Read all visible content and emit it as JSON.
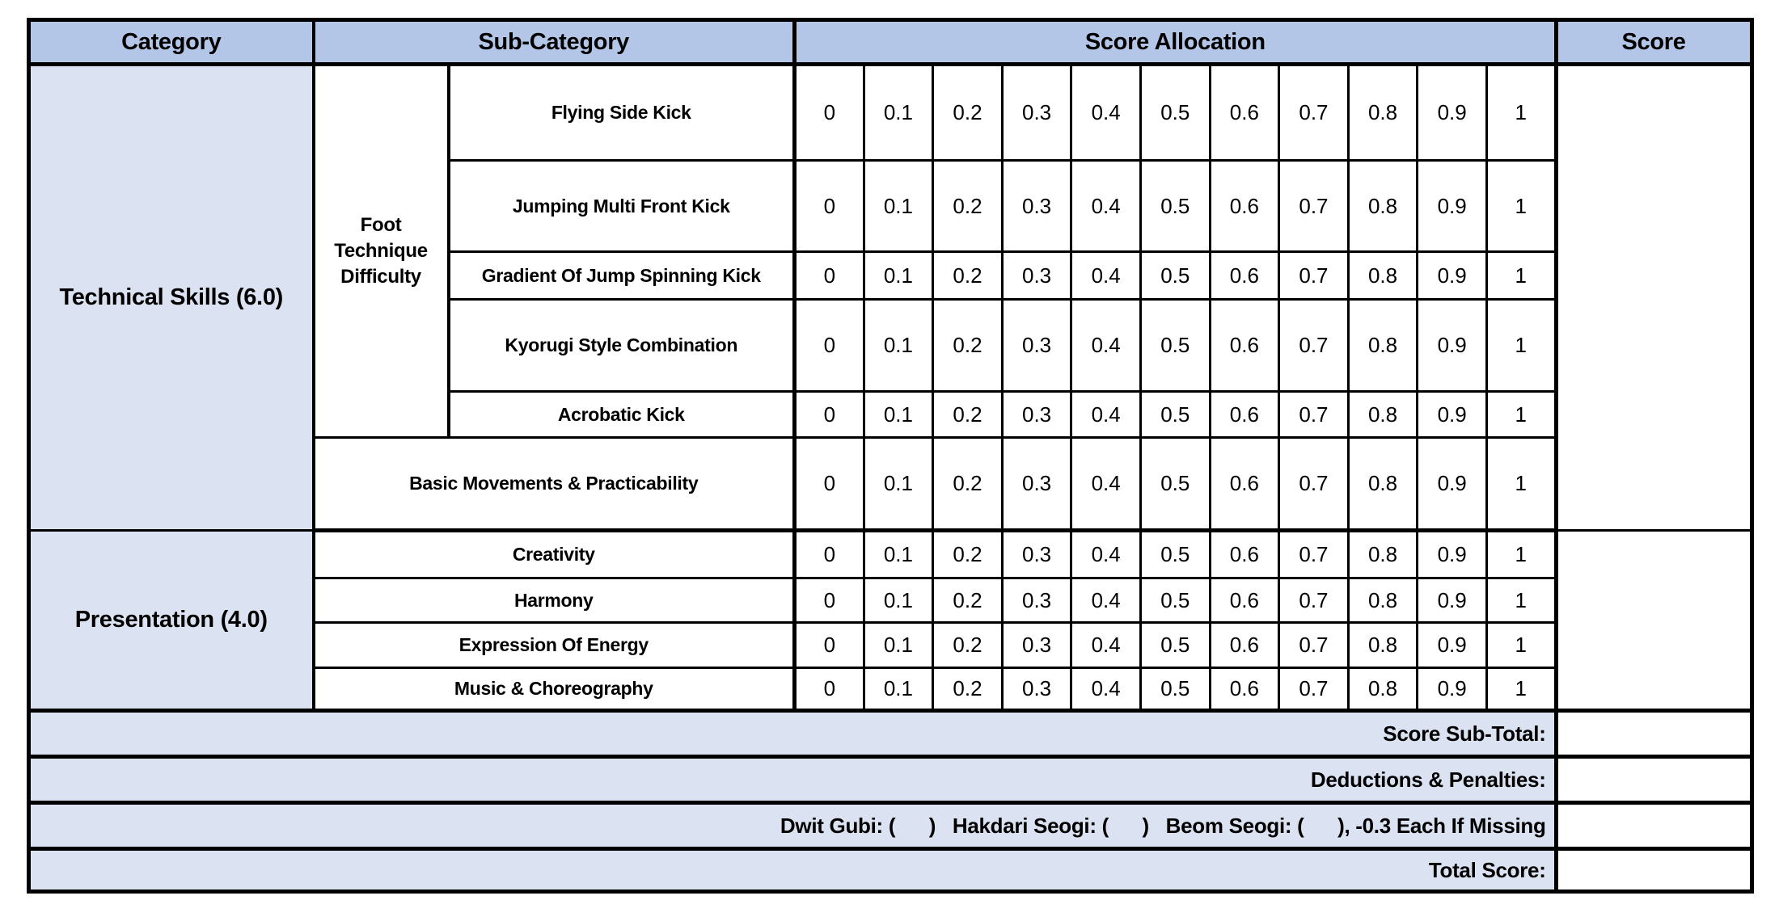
{
  "colors": {
    "header_bg": "#b4c6e7",
    "category_bg": "#dbe2f2",
    "cell_bg": "#ffffff",
    "border": "#000000",
    "text": "#000000"
  },
  "header": {
    "category": "Category",
    "sub_category": "Sub-Category",
    "score_allocation": "Score Allocation",
    "score": "Score"
  },
  "score_scale": [
    "0",
    "0.1",
    "0.2",
    "0.3",
    "0.4",
    "0.5",
    "0.6",
    "0.7",
    "0.8",
    "0.9",
    "1"
  ],
  "technical": {
    "category_label": "Technical Skills (6.0)",
    "group_label": "Foot Technique Difficulty",
    "items": {
      "flying": "Flying Side Kick",
      "jumping": "Jumping Multi Front Kick",
      "gradient": "Gradient Of Jump Spinning Kick",
      "kyorugi": "Kyorugi Style Combination",
      "acrobatic": "Acrobatic Kick",
      "basic": "Basic Movements & Practicability"
    }
  },
  "presentation": {
    "category_label": "Presentation (4.0)",
    "items": {
      "creativity": "Creativity",
      "harmony": "Harmony",
      "expression": "Expression Of Energy",
      "music": "Music & Choreography"
    }
  },
  "footer": {
    "subtotal": "Score Sub-Total:",
    "deductions": "Deductions & Penalties:",
    "stances": "Dwit Gubi: (      )   Hakdari Seogi: (      )   Beom Seogi: (      ), -0.3 Each If Missing",
    "total": "Total Score:"
  }
}
